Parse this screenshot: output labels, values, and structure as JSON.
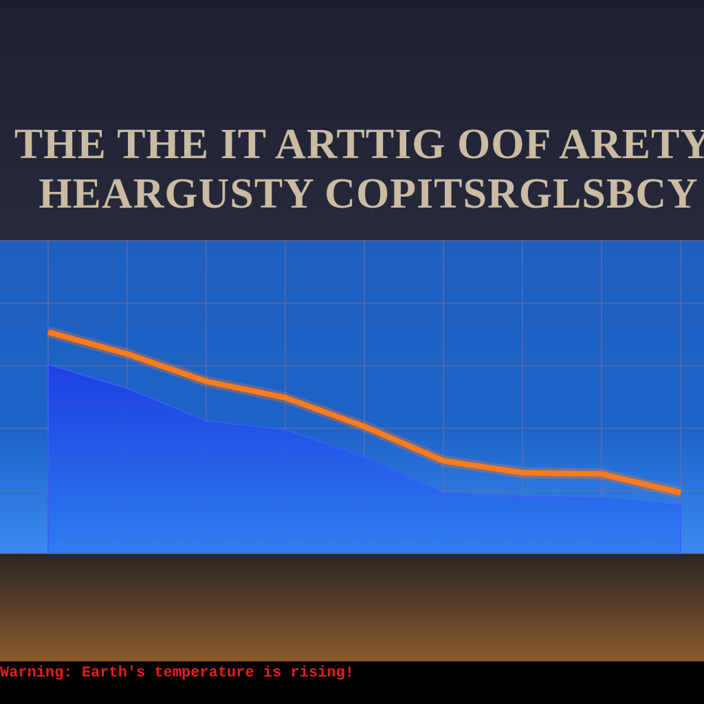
{
  "chart_data": {
    "type": "line",
    "title": "THE THE  IT ARTTIG OOF ARETY",
    "subtitle": "HEARGUSTY COPITSRGLSBCY",
    "annotation": "Warning: Earth's temperature is rising!",
    "categories": [
      null,
      null,
      null,
      null,
      null,
      null,
      null,
      null,
      null
    ],
    "series": [
      {
        "style": "area",
        "color": "#1f3fe0",
        "values": [
          3.02,
          2.64,
          2.12,
          1.98,
          1.54,
          0.96,
          0.91,
          0.88,
          0.77
        ]
      },
      {
        "style": "line",
        "color": "#ff7a1a",
        "values": [
          3.54,
          3.19,
          2.75,
          2.49,
          2.03,
          1.48,
          1.29,
          1.27,
          0.97
        ]
      }
    ],
    "ylim": [
      0,
      5
    ],
    "yticks": [
      0,
      1,
      2,
      3,
      4,
      5
    ],
    "grid": true
  }
}
